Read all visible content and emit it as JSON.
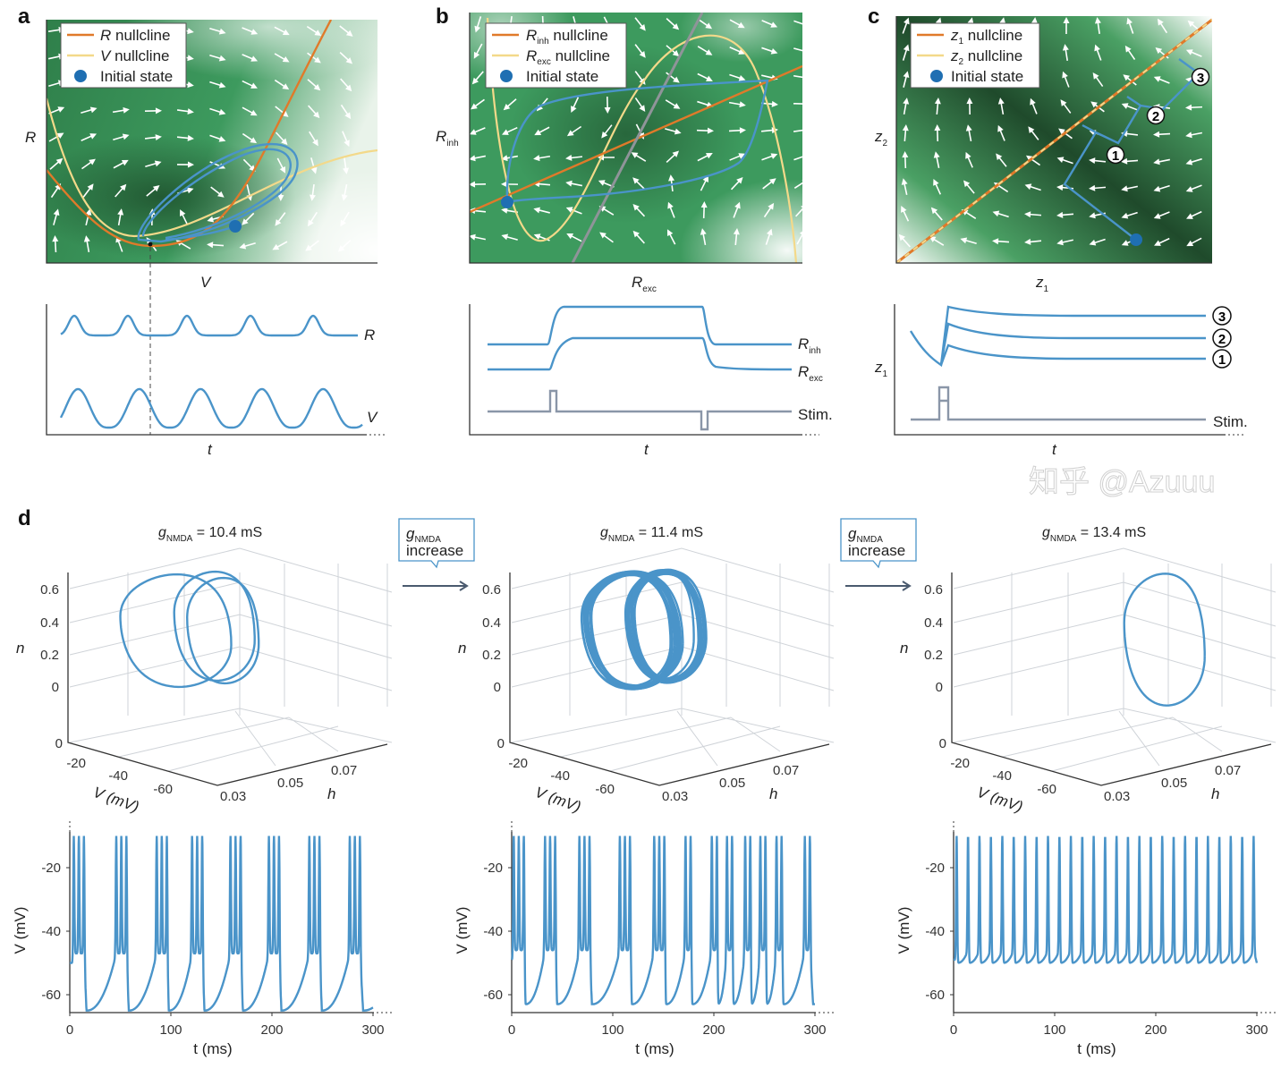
{
  "colors": {
    "trace": "#4a94c9",
    "r_nullcline": "#e07a2a",
    "v_nullcline": "#f3d98a",
    "initial_state": "#1f6fb2",
    "stim": "#8a96a8",
    "field": "#2e8b57"
  },
  "panel_a": {
    "label": "a",
    "legend": [
      {
        "var": "R",
        "sub": "",
        "text": " nullcline"
      },
      {
        "var": "V",
        "sub": "",
        "text": " nullcline"
      },
      {
        "var": "",
        "sub": "",
        "text": "Initial state"
      }
    ],
    "ylabel": "R",
    "xlabel": "V",
    "trace_labels": [
      "R",
      "V"
    ],
    "tlabel": "t"
  },
  "panel_b": {
    "label": "b",
    "legend": [
      {
        "var": "R",
        "sub": "inh",
        "text": " nullcline"
      },
      {
        "var": "R",
        "sub": "exc",
        "text": " nullcline"
      },
      {
        "var": "",
        "sub": "",
        "text": "Initial state"
      }
    ],
    "ylabel": {
      "var": "R",
      "sub": "inh"
    },
    "xlabel": {
      "var": "R",
      "sub": "exc"
    },
    "trace_labels": [
      {
        "var": "R",
        "sub": "inh"
      },
      {
        "var": "R",
        "sub": "exc"
      },
      {
        "var": "",
        "sub": "",
        "text": "Stim."
      }
    ],
    "tlabel": "t"
  },
  "panel_c": {
    "label": "c",
    "legend": [
      {
        "var": "z",
        "sub": "1",
        "text": " nullcline"
      },
      {
        "var": "z",
        "sub": "2",
        "text": " nullcline"
      },
      {
        "var": "",
        "sub": "",
        "text": "Initial state"
      }
    ],
    "ylabel": {
      "var": "z",
      "sub": "2"
    },
    "xlabel": {
      "var": "z",
      "sub": "1"
    },
    "markers": [
      "1",
      "2",
      "3"
    ],
    "trace_ylabel": {
      "var": "z",
      "sub": "1"
    },
    "stim_label": "Stim.",
    "tlabel": "t"
  },
  "panel_d": {
    "label": "d",
    "arrow_box": {
      "var": "g",
      "sub": "NMDA",
      "text": "increase"
    },
    "conditions": [
      {
        "var": "g",
        "sub": "NMDA",
        "text": " = 10.4 mS"
      },
      {
        "var": "g",
        "sub": "NMDA",
        "text": " = 11.4 mS"
      },
      {
        "var": "g",
        "sub": "NMDA",
        "text": " = 13.4 mS"
      }
    ],
    "phase": {
      "n_label": "n",
      "n_ticks": [
        "0.6",
        "0.4",
        "0.2",
        "0"
      ],
      "v_label": "V (mV)",
      "v_ticks": [
        "0",
        "-20",
        "-40",
        "-60"
      ],
      "h_label": "h",
      "h_ticks": [
        "0.03",
        "0.05",
        "0.07"
      ]
    },
    "timeseries": {
      "ylabel": "V (mV)",
      "xlabel": "t (ms)",
      "y_ticks": [
        "-20",
        "-40",
        "-60"
      ],
      "x_ticks": [
        "0",
        "100",
        "200",
        "300"
      ]
    }
  },
  "watermark": "知乎 @Azuuu",
  "chart_data": [
    {
      "type": "line",
      "panel": "a",
      "kind": "phase-plane",
      "xlabel": "V",
      "ylabel": "R",
      "legend": [
        "R nullcline",
        "V nullcline",
        "Initial state"
      ],
      "legend_placement": "top-left",
      "description_series": [
        "limit cycle trajectory"
      ]
    },
    {
      "type": "line",
      "panel": "a",
      "kind": "time-series",
      "xlabel": "t",
      "series": [
        {
          "name": "R",
          "peaks": 5
        },
        {
          "name": "V",
          "peaks": 5
        }
      ]
    },
    {
      "type": "line",
      "panel": "b",
      "kind": "phase-plane",
      "xlabel": "R_exc",
      "ylabel": "R_inh",
      "legend": [
        "R_inh nullcline",
        "R_exc nullcline",
        "Initial state"
      ],
      "legend_placement": "top-left"
    },
    {
      "type": "line",
      "panel": "b",
      "kind": "time-series",
      "xlabel": "t",
      "series": [
        {
          "name": "R_inh"
        },
        {
          "name": "R_exc"
        },
        {
          "name": "Stim."
        }
      ]
    },
    {
      "type": "line",
      "panel": "c",
      "kind": "phase-plane",
      "xlabel": "z_1",
      "ylabel": "z_2",
      "legend": [
        "z_1 nullcline",
        "z_2 nullcline",
        "Initial state"
      ],
      "legend_placement": "top-left",
      "markers": [
        "1",
        "2",
        "3"
      ]
    },
    {
      "type": "line",
      "panel": "c",
      "kind": "time-series",
      "xlabel": "t",
      "ylabel": "z_1",
      "series": [
        {
          "name": "1"
        },
        {
          "name": "2"
        },
        {
          "name": "3"
        },
        {
          "name": "Stim."
        }
      ]
    },
    {
      "type": "line",
      "panel": "d",
      "kind": "3d-phase",
      "g_NMDA_mS": [
        10.4,
        11.4,
        13.4
      ],
      "axes": {
        "V (mV)": [
          0,
          -60
        ],
        "h": [
          0.03,
          0.07
        ],
        "n": [
          0,
          0.6
        ]
      }
    },
    {
      "type": "line",
      "panel": "d",
      "kind": "time-series",
      "xlabel": "t (ms)",
      "ylabel": "V (mV)",
      "xlim": [
        0,
        300
      ],
      "ylim": [
        -65,
        -10
      ],
      "series": [
        {
          "name": "10.4 mS",
          "pattern": "bursts of 3 spikes",
          "trough_mV": -65,
          "peak_mV": -10
        },
        {
          "name": "11.4 mS",
          "pattern": "irregular bursts",
          "trough_mV": -64,
          "peak_mV": -10
        },
        {
          "name": "13.4 mS",
          "pattern": "tonic spiking",
          "trough_mV": -50,
          "peak_mV": -10
        }
      ]
    }
  ]
}
